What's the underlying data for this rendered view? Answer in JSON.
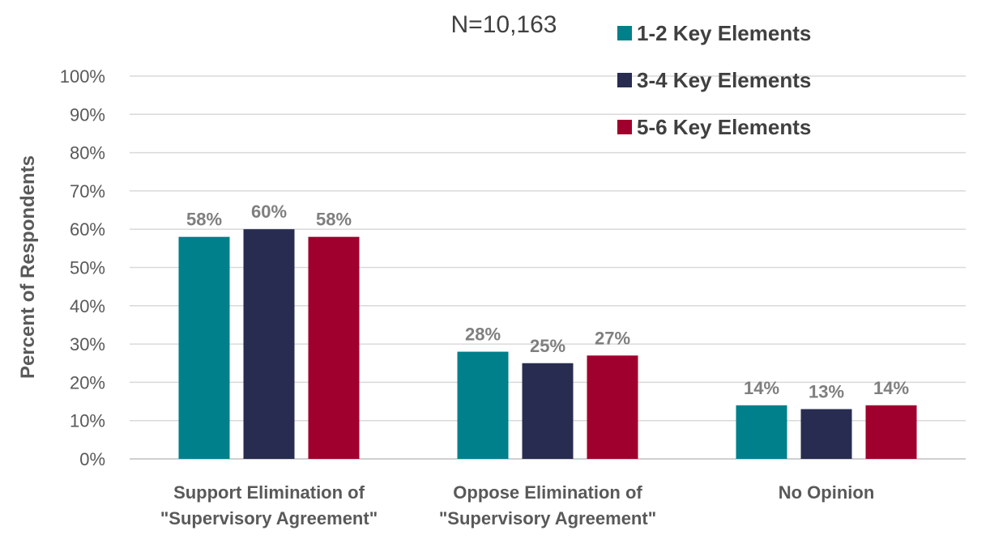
{
  "chart_data": {
    "type": "bar",
    "annotation": "N=10,163",
    "ylabel": "Percent of Respondents",
    "xlabel": "",
    "ylim": [
      0,
      100
    ],
    "y_ticks": [
      "0%",
      "10%",
      "20%",
      "30%",
      "40%",
      "50%",
      "60%",
      "70%",
      "80%",
      "90%",
      "100%"
    ],
    "y_tick_values": [
      0,
      10,
      20,
      30,
      40,
      50,
      60,
      70,
      80,
      90,
      100
    ],
    "grid": true,
    "legend_position": "top-right",
    "categories": [
      [
        "Support Elimination of",
        "\"Supervisory Agreement\""
      ],
      [
        "Oppose Elimination of",
        "\"Supervisory Agreement\""
      ],
      [
        "No Opinion"
      ]
    ],
    "series": [
      {
        "name": "1-2 Key Elements",
        "color": "#00808a",
        "values": [
          58,
          28,
          14
        ],
        "labels": [
          "58%",
          "28%",
          "14%"
        ]
      },
      {
        "name": "3-4 Key Elements",
        "color": "#272c50",
        "values": [
          60,
          25,
          13
        ],
        "labels": [
          "60%",
          "25%",
          "13%"
        ]
      },
      {
        "name": "5-6 Key Elements",
        "color": "#a0002d",
        "values": [
          58,
          27,
          14
        ],
        "labels": [
          "58%",
          "27%",
          "14%"
        ]
      }
    ]
  }
}
